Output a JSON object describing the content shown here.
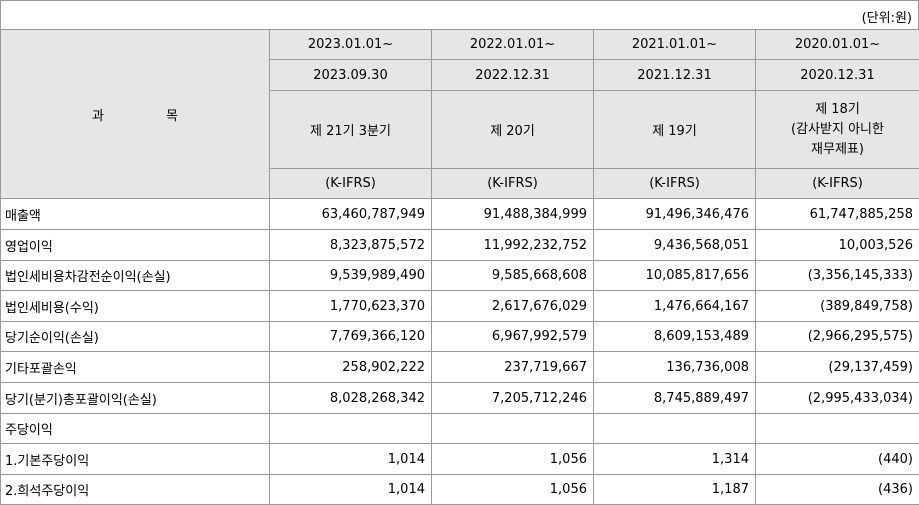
{
  "unit_label": "(단위:원)",
  "subject_header": [
    "과",
    "목"
  ],
  "periods": [
    {
      "start": "2023.01.01~",
      "end": "2023.09.30",
      "term": "제 21기 3분기",
      "std": "(K-IFRS)"
    },
    {
      "start": "2022.01.01~",
      "end": "2022.12.31",
      "term": "제 20기",
      "std": "(K-IFRS)"
    },
    {
      "start": "2021.01.01~",
      "end": "2021.12.31",
      "term": "제 19기",
      "std": "(K-IFRS)"
    },
    {
      "start": "2020.01.01~",
      "end": "2020.12.31",
      "term": "제 18기\n(감사받지 아니한\n재무제표)",
      "std": "(K-IFRS)"
    }
  ],
  "rows": [
    {
      "label": "매출액",
      "values": [
        "63,460,787,949",
        "91,488,384,999",
        "91,496,346,476",
        "61,747,885,258"
      ]
    },
    {
      "label": "영업이익",
      "values": [
        "8,323,875,572",
        "11,992,232,752",
        "9,436,568,051",
        "10,003,526"
      ]
    },
    {
      "label": "법인세비용차감전순이익(손실)",
      "values": [
        "9,539,989,490",
        "9,585,668,608",
        "10,085,817,656",
        "(3,356,145,333)"
      ]
    },
    {
      "label": "법인세비용(수익)",
      "values": [
        "1,770,623,370",
        "2,617,676,029",
        "1,476,664,167",
        "(389,849,758)"
      ]
    },
    {
      "label": "당기순이익(손실)",
      "values": [
        "7,769,366,120",
        "6,967,992,579",
        "8,609,153,489",
        "(2,966,295,575)"
      ]
    },
    {
      "label": "기타포괄손익",
      "values": [
        "258,902,222",
        "237,719,667",
        "136,736,008",
        "(29,137,459)"
      ]
    },
    {
      "label": "당기(분기)총포괄이익(손실)",
      "values": [
        "8,028,268,342",
        "7,205,712,246",
        "8,745,889,497",
        "(2,995,433,034)"
      ]
    },
    {
      "label": "주당이익",
      "values": [
        "",
        "",
        "",
        ""
      ]
    },
    {
      "label": "1.기본주당이익",
      "values": [
        "1,014",
        "1,056",
        "1,314",
        "(440)"
      ]
    },
    {
      "label": "2.희석주당이익",
      "values": [
        "1,014",
        "1,056",
        "1,187",
        "(436)"
      ]
    }
  ]
}
